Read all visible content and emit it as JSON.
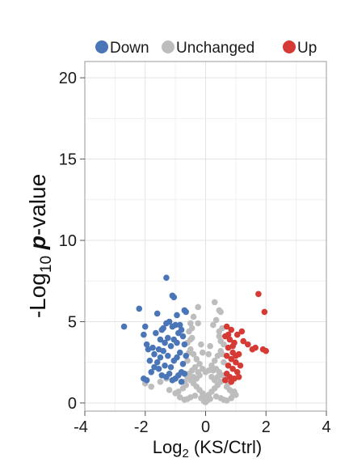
{
  "chart_data": {
    "type": "scatter",
    "title": "",
    "xlabel": {
      "main": "Log",
      "sub": "2",
      "rest": " (KS/Ctrl)"
    },
    "ylabel": {
      "main": "-Log",
      "sub": "10",
      "italic": "p",
      "rest": "-value"
    },
    "xlim": [
      -4,
      4
    ],
    "ylim": [
      -0.5,
      21
    ],
    "xticks": [
      -4,
      -2,
      0,
      2,
      4
    ],
    "yticks": [
      0,
      5,
      10,
      15,
      20
    ],
    "xtick_labels": [
      "-4",
      "-2",
      "0",
      "2",
      "4"
    ],
    "ytick_labels": [
      "0",
      "5",
      "10",
      "15",
      "20"
    ],
    "grid": true,
    "legend_position": "top",
    "series": [
      {
        "name": "Down",
        "color": "#4a76b8",
        "points": [
          [
            -1.3,
            7.7
          ],
          [
            -1.1,
            6.6
          ],
          [
            -1.05,
            6.5
          ],
          [
            -2.2,
            5.8
          ],
          [
            -1.6,
            5.5
          ],
          [
            -0.95,
            5.4
          ],
          [
            -0.65,
            5.6
          ],
          [
            -0.7,
            5.7
          ],
          [
            -2.7,
            4.7
          ],
          [
            -2.0,
            4.7
          ],
          [
            -1.45,
            4.5
          ],
          [
            -0.8,
            4.5
          ],
          [
            -2.05,
            4.2
          ],
          [
            -1.95,
            3.6
          ],
          [
            -1.9,
            3.3
          ],
          [
            -1.75,
            3.4
          ],
          [
            -1.55,
            3.3
          ],
          [
            -1.4,
            3.2
          ],
          [
            -1.3,
            4.9
          ],
          [
            -1.2,
            5.0
          ],
          [
            -1.1,
            4.7
          ],
          [
            -1.0,
            4.8
          ],
          [
            -0.9,
            4.3
          ],
          [
            -1.65,
            4.3
          ],
          [
            -1.6,
            2.5
          ],
          [
            -1.5,
            2.8
          ],
          [
            -1.35,
            2.3
          ],
          [
            -1.25,
            2.9
          ],
          [
            -1.15,
            2.2
          ],
          [
            -1.05,
            2.6
          ],
          [
            -0.95,
            3.7
          ],
          [
            -0.85,
            3.1
          ],
          [
            -0.75,
            2.4
          ],
          [
            -1.8,
            1.9
          ],
          [
            -1.7,
            2.2
          ],
          [
            -1.45,
            1.7
          ],
          [
            -1.3,
            1.6
          ],
          [
            -1.2,
            1.8
          ],
          [
            -1.1,
            1.4
          ],
          [
            -1.0,
            1.5
          ],
          [
            -0.9,
            1.7
          ],
          [
            -0.8,
            1.3
          ],
          [
            -2.05,
            1.5
          ],
          [
            -1.95,
            1.4
          ],
          [
            -0.7,
            1.8
          ],
          [
            -0.65,
            2.9
          ],
          [
            -0.7,
            3.6
          ],
          [
            -0.75,
            4.1
          ],
          [
            -0.85,
            4.8
          ],
          [
            -1.5,
            3.9
          ],
          [
            -1.35,
            3.7
          ],
          [
            -1.25,
            4.0
          ],
          [
            -1.15,
            3.5
          ],
          [
            -1.05,
            3.9
          ],
          [
            -0.95,
            2.8
          ],
          [
            -1.55,
            2.1
          ],
          [
            -1.85,
            2.6
          ],
          [
            -0.8,
            1.9
          ],
          [
            -1.7,
            3.0
          ],
          [
            -1.4,
            4.6
          ]
        ]
      },
      {
        "name": "Unchanged",
        "color": "#bdbdbd",
        "points": [
          [
            0.3,
            6.2
          ],
          [
            0.45,
            5.7
          ],
          [
            -0.25,
            5.9
          ],
          [
            0.5,
            5.6
          ],
          [
            -0.4,
            5.3
          ],
          [
            0.35,
            5.1
          ],
          [
            -0.5,
            4.9
          ],
          [
            0.55,
            4.6
          ],
          [
            -0.55,
            4.4
          ],
          [
            -0.45,
            4.0
          ],
          [
            0.45,
            4.1
          ],
          [
            -0.6,
            3.7
          ],
          [
            0.6,
            3.6
          ],
          [
            -0.5,
            3.3
          ],
          [
            0.5,
            3.2
          ],
          [
            -0.4,
            3.0
          ],
          [
            0.4,
            2.9
          ],
          [
            -0.3,
            2.7
          ],
          [
            0.3,
            2.6
          ],
          [
            -0.2,
            2.4
          ],
          [
            0.2,
            2.3
          ],
          [
            -0.1,
            2.1
          ],
          [
            0.1,
            2.0
          ],
          [
            0.0,
            1.9
          ],
          [
            -0.35,
            2.2
          ],
          [
            0.35,
            2.1
          ],
          [
            -0.45,
            2.0
          ],
          [
            0.45,
            1.9
          ],
          [
            -0.55,
            1.8
          ],
          [
            0.55,
            1.7
          ],
          [
            -0.6,
            1.6
          ],
          [
            0.65,
            1.5
          ],
          [
            -0.5,
            1.4
          ],
          [
            0.5,
            1.3
          ],
          [
            -0.4,
            1.2
          ],
          [
            0.4,
            1.1
          ],
          [
            -0.3,
            1.0
          ],
          [
            0.3,
            0.9
          ],
          [
            -0.2,
            0.8
          ],
          [
            0.2,
            0.7
          ],
          [
            -0.1,
            0.6
          ],
          [
            0.1,
            0.5
          ],
          [
            0.0,
            0.4
          ],
          [
            -0.15,
            0.3
          ],
          [
            0.15,
            0.25
          ],
          [
            0.05,
            0.15
          ],
          [
            -0.05,
            0.1
          ],
          [
            0.0,
            0.05
          ],
          [
            -0.65,
            1.1
          ],
          [
            0.7,
            1.0
          ],
          [
            -0.75,
            0.9
          ],
          [
            0.8,
            0.8
          ],
          [
            -0.9,
            0.7
          ],
          [
            0.9,
            0.6
          ],
          [
            -1.0,
            0.6
          ],
          [
            1.0,
            0.5
          ],
          [
            -1.2,
            0.8
          ],
          [
            -1.5,
            1.3
          ],
          [
            -1.8,
            1.0
          ],
          [
            -2.0,
            1.2
          ],
          [
            -1.3,
            1.5
          ],
          [
            0.95,
            0.7
          ],
          [
            0.75,
            1.2
          ],
          [
            -0.7,
            1.3
          ],
          [
            0.6,
            2.5
          ],
          [
            -0.6,
            2.6
          ],
          [
            0.55,
            3.0
          ],
          [
            -0.55,
            3.1
          ],
          [
            0.5,
            3.8
          ],
          [
            -0.5,
            3.9
          ],
          [
            0.45,
            4.4
          ],
          [
            -0.45,
            4.6
          ],
          [
            0.25,
            4.8
          ],
          [
            -0.25,
            4.9
          ],
          [
            0.15,
            3.5
          ],
          [
            -0.15,
            3.6
          ],
          [
            0.1,
            3.0
          ],
          [
            -0.1,
            3.1
          ],
          [
            0.2,
            1.6
          ],
          [
            -0.2,
            1.7
          ],
          [
            0.3,
            1.4
          ],
          [
            -0.3,
            1.5
          ],
          [
            0.35,
            0.4
          ],
          [
            -0.35,
            0.45
          ],
          [
            0.5,
            0.3
          ],
          [
            -0.5,
            0.35
          ],
          [
            0.6,
            0.2
          ],
          [
            -0.6,
            0.25
          ],
          [
            0.7,
            0.15
          ],
          [
            -0.7,
            0.2
          ],
          [
            0.85,
            0.3
          ],
          [
            -0.85,
            0.35
          ],
          [
            0.25,
            2.0
          ],
          [
            -0.25,
            1.9
          ],
          [
            0.4,
            1.6
          ],
          [
            -0.4,
            1.6
          ]
        ]
      },
      {
        "name": "Up",
        "color": "#d63a35",
        "points": [
          [
            1.75,
            6.7
          ],
          [
            1.95,
            5.6
          ],
          [
            0.7,
            4.7
          ],
          [
            0.85,
            4.5
          ],
          [
            1.05,
            4.2
          ],
          [
            0.65,
            4.1
          ],
          [
            0.8,
            3.9
          ],
          [
            0.95,
            3.7
          ],
          [
            1.25,
            3.8
          ],
          [
            1.4,
            3.6
          ],
          [
            1.55,
            3.3
          ],
          [
            1.65,
            3.4
          ],
          [
            1.9,
            3.3
          ],
          [
            2.0,
            3.2
          ],
          [
            0.75,
            3.4
          ],
          [
            0.9,
            3.1
          ],
          [
            1.1,
            3.0
          ],
          [
            0.7,
            2.9
          ],
          [
            0.85,
            2.7
          ],
          [
            1.0,
            2.5
          ],
          [
            0.75,
            2.3
          ],
          [
            0.9,
            2.1
          ],
          [
            1.05,
            1.9
          ],
          [
            0.7,
            1.8
          ],
          [
            0.8,
            1.6
          ],
          [
            0.95,
            1.5
          ],
          [
            1.1,
            1.6
          ],
          [
            0.65,
            1.4
          ],
          [
            0.85,
            1.3
          ],
          [
            1.15,
            2.3
          ],
          [
            1.2,
            4.4
          ],
          [
            0.75,
            4.2
          ],
          [
            0.9,
            3.5
          ],
          [
            1.0,
            2.9
          ]
        ]
      }
    ]
  }
}
